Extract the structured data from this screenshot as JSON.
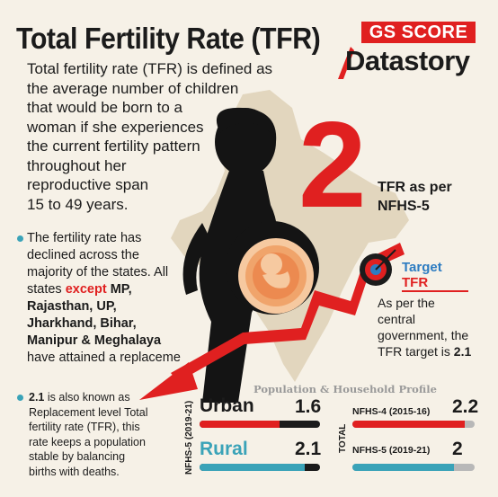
{
  "header": {
    "title": "Total Fertility Rate (TFR)",
    "logo_top": "GS SCORE",
    "logo_bottom": "Datastory"
  },
  "intro": {
    "lines": [
      "Total fertility rate (TFR) is defined as",
      "the average number of children",
      "that would be born to a",
      "woman if she experiences",
      "the current fertility pattern",
      "throughout her",
      "reproductive span",
      "15 to 49 years."
    ]
  },
  "decline": {
    "line1": "The fertility rate has",
    "line2": "declined across the",
    "line3": "majority of the states. All",
    "line4_pre": "states ",
    "line4_except": "except",
    "line4_post": " MP,",
    "line5": "Rajasthan, UP,",
    "line6": "Jharkhand, Bihar,",
    "line7": "Manipur & Meghalaya",
    "line8": "have attained a replaceme"
  },
  "replacement": {
    "value": "2.1",
    "line1_post": " is also known as",
    "line2": "Replacement level Total",
    "line3": "fertility rate (TFR), this",
    "line4": "rate keeps a population",
    "line5": "stable by balancing",
    "line6": "births with deaths."
  },
  "tfr_big": {
    "value": "2",
    "label_line1": "TFR as per",
    "label_line2": "NFHS-5"
  },
  "target": {
    "title_line1": "Target",
    "title_line2": "TFR",
    "body_lines": [
      "As per the",
      "central",
      "government, the"
    ],
    "body_last_pre": "TFR target is ",
    "body_last_value": "2.1"
  },
  "profile": {
    "title": "Population & Household Profile",
    "left_axis_label": "NFHS-5 (2019-21)",
    "right_axis_label": "TOTAL"
  },
  "chart_data": {
    "type": "bar",
    "title": "Population & Household Profile",
    "groups": [
      {
        "name": "NFHS-5 (2019-21)",
        "categories": [
          "Urban",
          "Rural"
        ],
        "values": [
          1.6,
          2.1
        ],
        "value_labels": [
          "1.6",
          "2.1"
        ]
      },
      {
        "name": "TOTAL",
        "categories": [
          "NFHS-4 (2015-16)",
          "NFHS-5 (2019-21)"
        ],
        "values": [
          2.2,
          2.0
        ],
        "value_labels": [
          "2.2",
          "2"
        ]
      }
    ],
    "ylim": [
      0,
      2.4
    ]
  },
  "colors": {
    "accent_red": "#e02020",
    "teal": "#3aa3b8",
    "blue": "#2d7cc1",
    "dark": "#1b1b1b",
    "track": "#b8b8b8",
    "background": "#f6f1e7"
  }
}
